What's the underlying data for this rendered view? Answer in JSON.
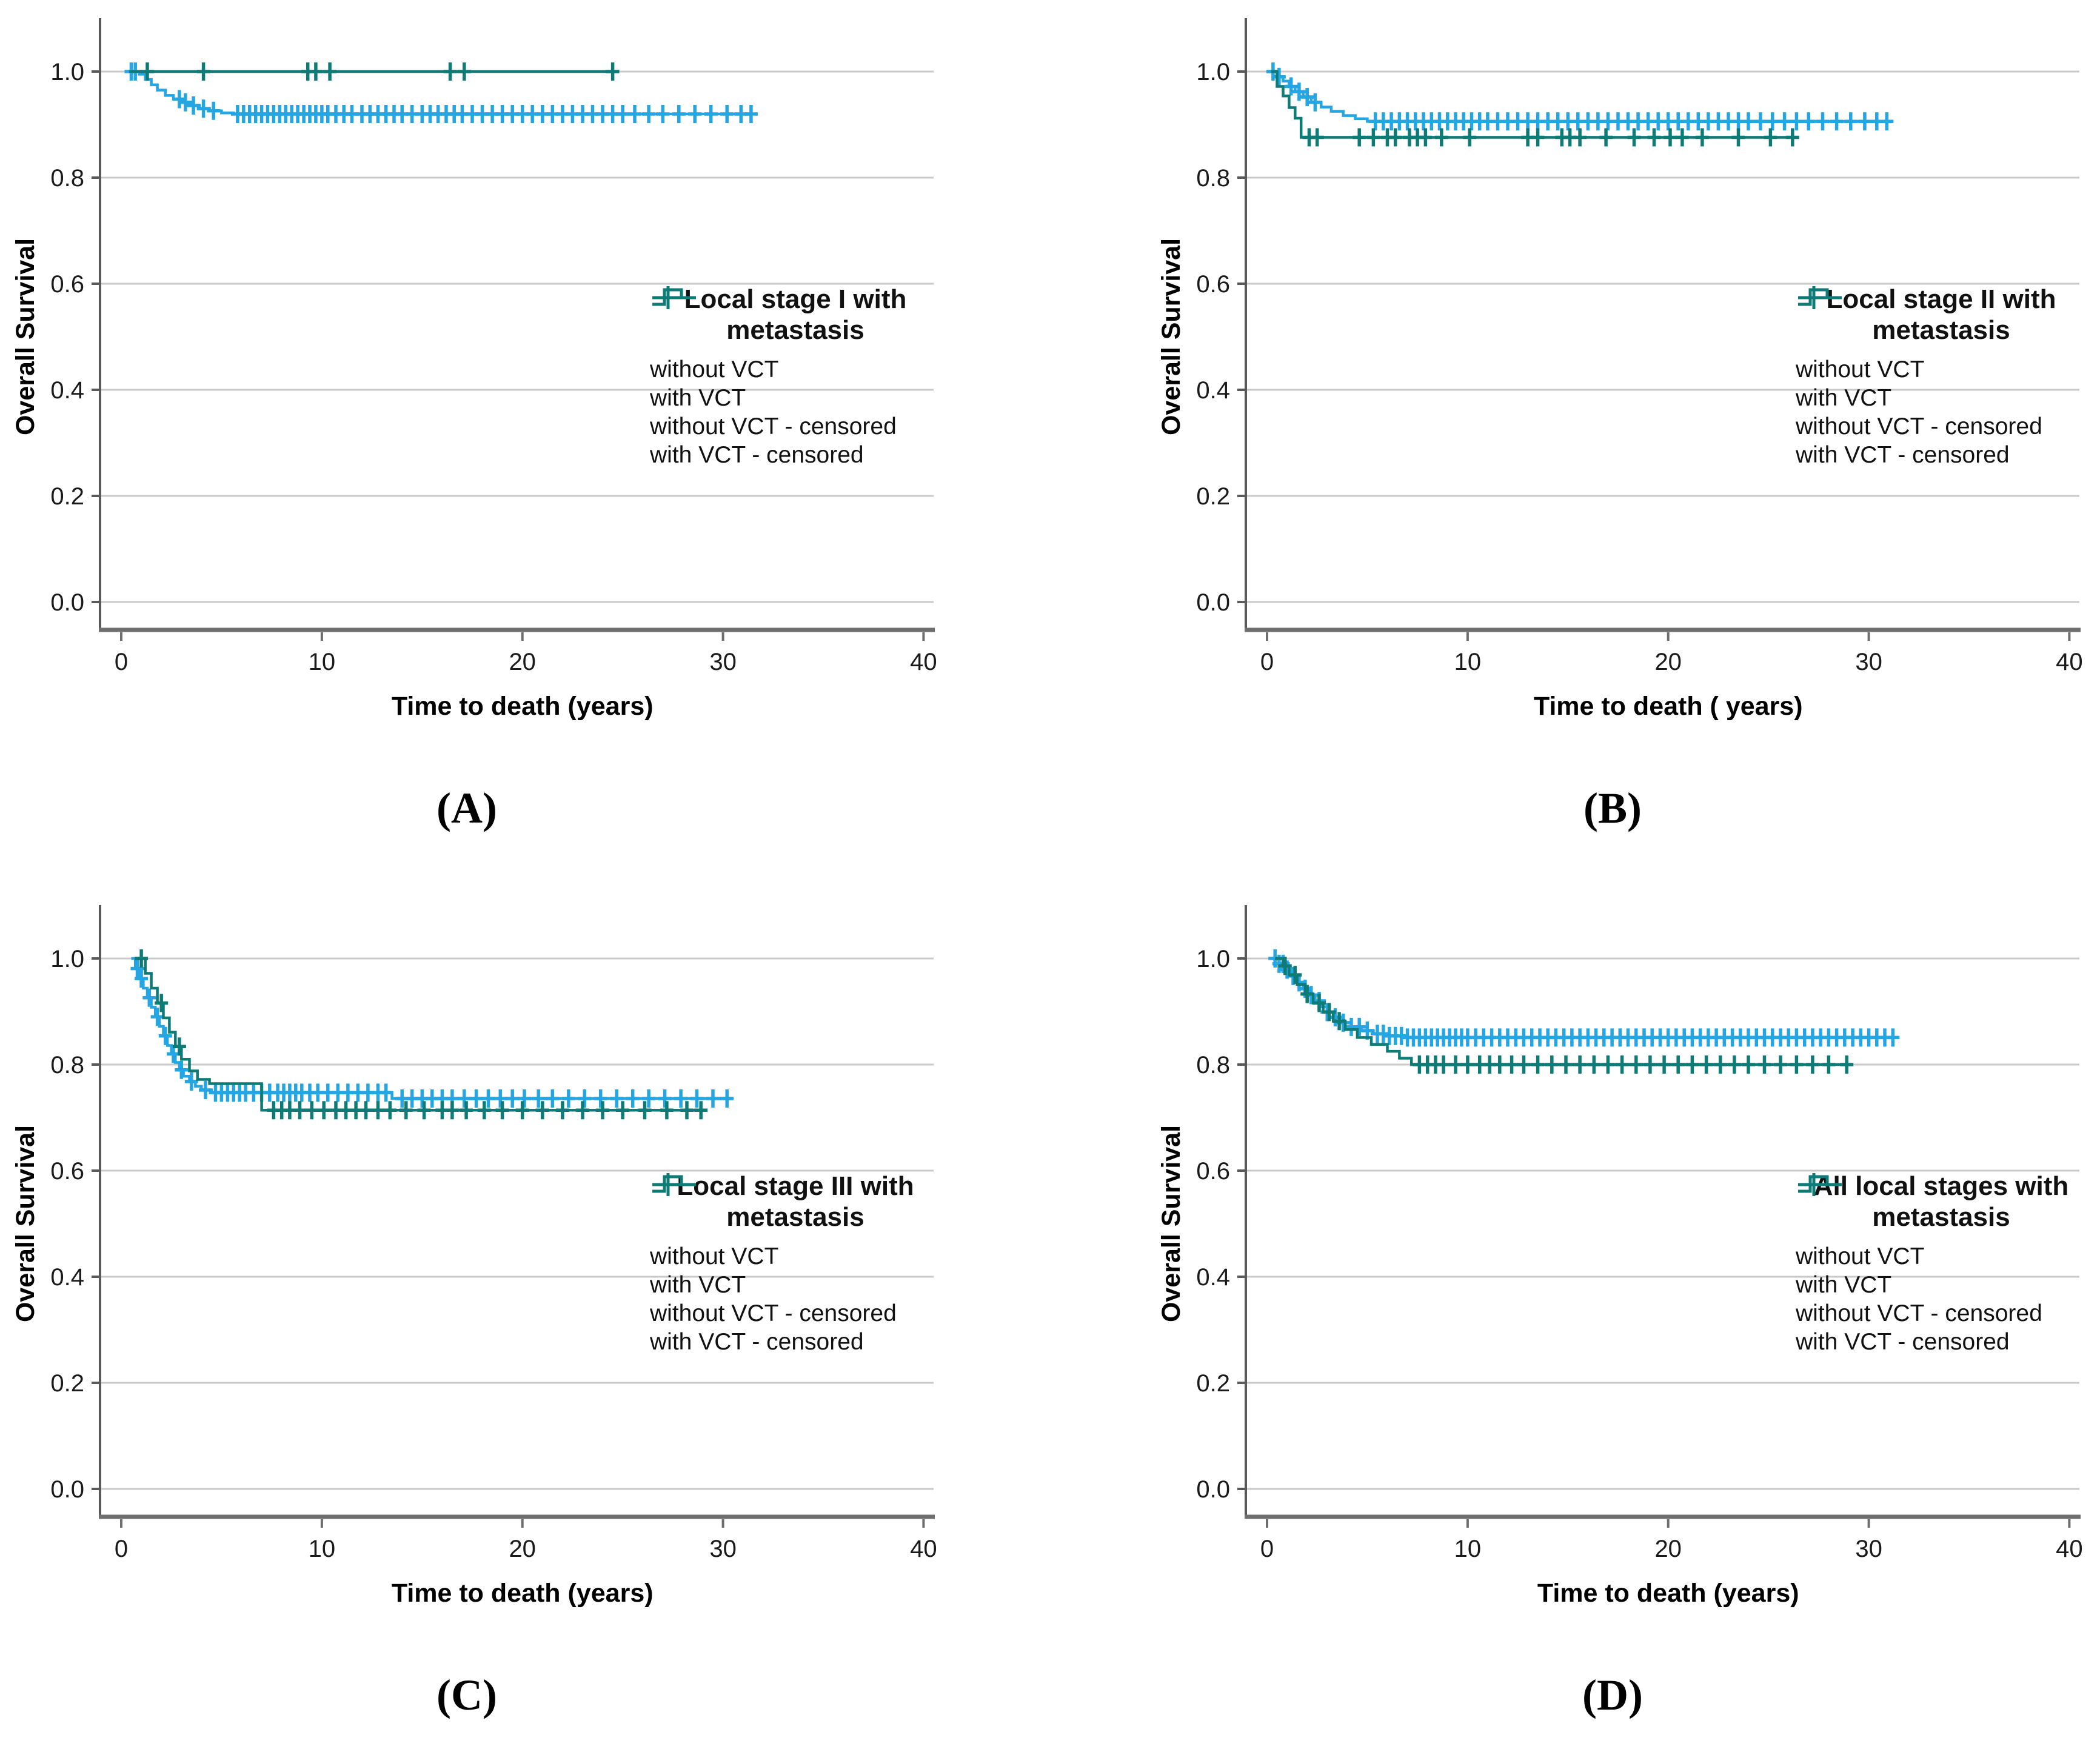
{
  "colors": {
    "blue": "#25A5E2",
    "teal": "#0F7B76",
    "grid": "#c9c9c9",
    "axis": "#595959",
    "axis_bottom": "#6e6e6e",
    "text": "#1a1a1a"
  },
  "chart_data": [
    {
      "type": "line",
      "panel": "A",
      "caption": "(A)",
      "legend": {
        "title_lines": [
          "Local stage I with",
          "metastasis"
        ],
        "items": [
          {
            "label": "without VCT"
          },
          {
            "label": "with VCT"
          },
          {
            "label": "without VCT - censored"
          },
          {
            "label": "with VCT - censored"
          }
        ]
      },
      "x": {
        "title": "Time to death (years)",
        "ticks": [
          0,
          10,
          20,
          30,
          40
        ],
        "lim": [
          -1,
          40.5
        ]
      },
      "y": {
        "title": "Overall Survival",
        "ticks": [
          "1.0",
          "0.8",
          "0.6",
          "0.4",
          "0.2",
          "0.0"
        ],
        "lim": [
          0,
          1.1
        ]
      },
      "series": [
        {
          "name": "without-vct",
          "color": "blue",
          "points": [
            [
              0.3,
              1.0
            ],
            [
              0.9,
              0.995
            ],
            [
              1.2,
              0.985
            ],
            [
              1.5,
              0.975
            ],
            [
              1.8,
              0.965
            ],
            [
              2.2,
              0.955
            ],
            [
              2.6,
              0.948
            ],
            [
              3.0,
              0.942
            ],
            [
              3.4,
              0.936
            ],
            [
              3.9,
              0.93
            ],
            [
              4.4,
              0.926
            ],
            [
              5.0,
              0.922
            ],
            [
              5.6,
              0.92
            ],
            [
              31.5,
              0.92
            ]
          ],
          "censored": [
            0.5,
            0.7,
            2.9,
            3.2,
            3.6,
            4.1,
            4.6,
            5.8,
            6.1,
            6.4,
            6.7,
            7.0,
            7.3,
            7.6,
            7.9,
            8.2,
            8.5,
            8.8,
            9.1,
            9.4,
            9.7,
            10.0,
            10.3,
            10.7,
            11.1,
            11.5,
            12.0,
            12.4,
            12.8,
            13.2,
            13.6,
            14.0,
            14.5,
            15.0,
            15.4,
            15.8,
            16.2,
            16.6,
            17.0,
            17.5,
            18.0,
            18.5,
            19.0,
            19.5,
            20.0,
            20.5,
            21.0,
            21.5,
            22.0,
            22.5,
            23.0,
            23.5,
            24.0,
            24.5,
            25.0,
            25.6,
            26.3,
            27.0,
            27.8,
            28.6,
            29.4,
            30.2,
            30.9,
            31.4
          ]
        },
        {
          "name": "with-vct",
          "color": "teal",
          "points": [
            [
              0.4,
              1.0
            ],
            [
              24.6,
              1.0
            ]
          ],
          "censored": [
            1.3,
            4.1,
            9.3,
            9.7,
            10.4,
            16.4,
            17.1,
            24.5
          ]
        }
      ]
    },
    {
      "type": "line",
      "panel": "B",
      "caption": "(B)",
      "legend": {
        "title_lines": [
          "Local stage II with",
          "metastasis"
        ],
        "items": [
          {
            "label": "without VCT"
          },
          {
            "label": "with VCT"
          },
          {
            "label": "without VCT - censored"
          },
          {
            "label": "with VCT - censored"
          }
        ]
      },
      "x": {
        "title": "Time to death ( years)",
        "ticks": [
          0,
          10,
          20,
          30,
          40
        ],
        "lim": [
          -1,
          40.5
        ]
      },
      "y": {
        "title": "Overall Survival",
        "ticks": [
          "1.0",
          "0.8",
          "0.6",
          "0.4",
          "0.2",
          "0.0"
        ],
        "lim": [
          0,
          1.1
        ]
      },
      "series": [
        {
          "name": "without-vct",
          "color": "blue",
          "points": [
            [
              0.2,
              1.0
            ],
            [
              0.5,
              0.99
            ],
            [
              0.8,
              0.982
            ],
            [
              1.1,
              0.972
            ],
            [
              1.4,
              0.962
            ],
            [
              1.8,
              0.952
            ],
            [
              2.2,
              0.942
            ],
            [
              2.7,
              0.933
            ],
            [
              3.2,
              0.925
            ],
            [
              3.8,
              0.917
            ],
            [
              4.4,
              0.911
            ],
            [
              5.0,
              0.906
            ],
            [
              31.0,
              0.906
            ]
          ],
          "censored": [
            0.3,
            0.6,
            1.2,
            1.6,
            2.0,
            2.4,
            5.4,
            5.8,
            6.2,
            6.6,
            7.0,
            7.4,
            7.8,
            8.2,
            8.6,
            9.0,
            9.4,
            9.8,
            10.2,
            10.6,
            11.0,
            11.5,
            12.0,
            12.5,
            13.0,
            13.5,
            14.0,
            14.5,
            15.0,
            15.5,
            16.0,
            16.5,
            17.0,
            17.5,
            18.0,
            18.5,
            19.0,
            19.5,
            20.0,
            20.5,
            21.0,
            21.5,
            22.0,
            22.5,
            23.0,
            23.5,
            24.0,
            24.6,
            25.2,
            25.8,
            26.4,
            27.0,
            27.7,
            28.4,
            29.1,
            29.8,
            30.4,
            30.9
          ]
        },
        {
          "name": "with-vct",
          "color": "teal",
          "points": [
            [
              0.2,
              1.0
            ],
            [
              0.5,
              0.972
            ],
            [
              0.8,
              0.954
            ],
            [
              1.1,
              0.932
            ],
            [
              1.4,
              0.912
            ],
            [
              1.7,
              0.876
            ],
            [
              26.3,
              0.876
            ]
          ],
          "censored": [
            2.1,
            2.5,
            4.6,
            5.3,
            6.0,
            6.4,
            7.1,
            7.5,
            7.9,
            8.7,
            10.1,
            13.0,
            13.5,
            14.7,
            15.1,
            15.6,
            16.9,
            18.3,
            19.3,
            20.1,
            20.7,
            21.7,
            23.5,
            25.1,
            26.2
          ]
        }
      ]
    },
    {
      "type": "line",
      "panel": "C",
      "caption": "(C)",
      "legend": {
        "title_lines": [
          "Local stage III with",
          "metastasis"
        ],
        "items": [
          {
            "label": "without VCT"
          },
          {
            "label": "with VCT"
          },
          {
            "label": "without VCT - censored"
          },
          {
            "label": "with VCT - censored"
          }
        ]
      },
      "x": {
        "title": "Time to death (years)",
        "ticks": [
          0,
          10,
          20,
          30,
          40
        ],
        "lim": [
          -1,
          40.5
        ]
      },
      "y": {
        "title": "Overall Survival",
        "ticks": [
          "1.0",
          "0.8",
          "0.6",
          "0.4",
          "0.2",
          "0.0"
        ],
        "lim": [
          0,
          1.1
        ]
      },
      "series": [
        {
          "name": "without-vct",
          "color": "blue",
          "points": [
            [
              0.5,
              1.0
            ],
            [
              0.7,
              0.981
            ],
            [
              0.9,
              0.962
            ],
            [
              1.1,
              0.944
            ],
            [
              1.3,
              0.926
            ],
            [
              1.5,
              0.908
            ],
            [
              1.7,
              0.89
            ],
            [
              1.9,
              0.872
            ],
            [
              2.1,
              0.854
            ],
            [
              2.3,
              0.836
            ],
            [
              2.5,
              0.82
            ],
            [
              2.7,
              0.804
            ],
            [
              2.9,
              0.79
            ],
            [
              3.1,
              0.778
            ],
            [
              3.4,
              0.768
            ],
            [
              3.7,
              0.759
            ],
            [
              4.0,
              0.752
            ],
            [
              4.5,
              0.747
            ],
            [
              13.5,
              0.736
            ],
            [
              30.5,
              0.736
            ]
          ],
          "censored": [
            0.8,
            1.0,
            1.4,
            1.8,
            2.2,
            2.6,
            3.0,
            3.5,
            4.2,
            4.7,
            5.0,
            5.3,
            5.6,
            5.9,
            6.2,
            6.6,
            7.0,
            7.4,
            7.8,
            8.1,
            8.4,
            8.7,
            9.0,
            9.4,
            9.8,
            10.3,
            10.8,
            11.3,
            11.8,
            12.3,
            12.8,
            13.2,
            14.0,
            14.5,
            15.0,
            15.5,
            16.0,
            16.5,
            17.1,
            17.7,
            18.3,
            18.9,
            19.5,
            20.1,
            20.8,
            21.5,
            22.3,
            23.1,
            23.9,
            24.7,
            25.5,
            26.3,
            27.1,
            27.9,
            28.7,
            29.5,
            30.2
          ]
        },
        {
          "name": "with-vct",
          "color": "teal",
          "points": [
            [
              0.9,
              1.0
            ],
            [
              1.2,
              0.972
            ],
            [
              1.5,
              0.944
            ],
            [
              1.8,
              0.916
            ],
            [
              2.1,
              0.888
            ],
            [
              2.4,
              0.861
            ],
            [
              2.7,
              0.834
            ],
            [
              3.0,
              0.81
            ],
            [
              3.4,
              0.788
            ],
            [
              3.8,
              0.772
            ],
            [
              4.4,
              0.764
            ],
            [
              7.0,
              0.714
            ],
            [
              29.0,
              0.714
            ]
          ],
          "censored": [
            1.0,
            2.0,
            2.9,
            7.6,
            8.0,
            8.4,
            8.9,
            9.5,
            10.1,
            10.7,
            11.2,
            11.7,
            12.2,
            12.8,
            13.4,
            14.2,
            15.1,
            16.0,
            16.5,
            17.2,
            18.1,
            19.0,
            20.0,
            21.0,
            22.0,
            23.0,
            24.0,
            25.0,
            26.1,
            27.2,
            28.2,
            28.9
          ]
        }
      ]
    },
    {
      "type": "line",
      "panel": "D",
      "caption": "(D)",
      "legend": {
        "title_lines": [
          "All local stages with",
          "metastasis"
        ],
        "items": [
          {
            "label": "without VCT"
          },
          {
            "label": "with VCT"
          },
          {
            "label": "without VCT  - censored"
          },
          {
            "label": "with VCT - censored"
          }
        ]
      },
      "x": {
        "title": "Time to death (years)",
        "ticks": [
          0,
          10,
          20,
          30,
          40
        ],
        "lim": [
          -1,
          40.5
        ]
      },
      "y": {
        "title": "Overall Survival",
        "ticks": [
          "1.0",
          "0.8",
          "0.6",
          "0.4",
          "0.2",
          "0.0"
        ],
        "lim": [
          0,
          1.1
        ]
      },
      "series": [
        {
          "name": "without-vct",
          "color": "blue",
          "points": [
            [
              0.3,
              1.0
            ],
            [
              0.6,
              0.99
            ],
            [
              0.9,
              0.979
            ],
            [
              1.2,
              0.967
            ],
            [
              1.5,
              0.955
            ],
            [
              1.8,
              0.943
            ],
            [
              2.1,
              0.931
            ],
            [
              2.4,
              0.92
            ],
            [
              2.7,
              0.909
            ],
            [
              3.0,
              0.899
            ],
            [
              3.4,
              0.889
            ],
            [
              3.8,
              0.879
            ],
            [
              4.2,
              0.871
            ],
            [
              4.7,
              0.864
            ],
            [
              5.3,
              0.858
            ],
            [
              6.0,
              0.854
            ],
            [
              7.0,
              0.851
            ],
            [
              31.5,
              0.851
            ]
          ],
          "censored": [
            0.4,
            0.6,
            0.8,
            1.0,
            1.3,
            1.6,
            1.9,
            2.2,
            2.6,
            3.0,
            3.4,
            3.8,
            4.2,
            4.6,
            5.0,
            5.5,
            5.8,
            6.1,
            6.4,
            6.7,
            7.0,
            7.3,
            7.6,
            7.9,
            8.2,
            8.5,
            8.8,
            9.1,
            9.4,
            9.7,
            10.0,
            10.4,
            10.8,
            11.2,
            11.6,
            12.0,
            12.4,
            12.8,
            13.2,
            13.6,
            14.0,
            14.4,
            14.8,
            15.2,
            15.6,
            16.0,
            16.4,
            16.8,
            17.2,
            17.6,
            18.0,
            18.4,
            18.8,
            19.2,
            19.6,
            20.0,
            20.4,
            20.8,
            21.2,
            21.6,
            22.0,
            22.4,
            22.8,
            23.2,
            23.6,
            24.0,
            24.4,
            24.8,
            25.2,
            25.6,
            26.0,
            26.4,
            26.8,
            27.2,
            27.6,
            28.0,
            28.4,
            28.8,
            29.2,
            29.6,
            30.0,
            30.4,
            30.8,
            31.2
          ]
        },
        {
          "name": "with-vct",
          "color": "teal",
          "points": [
            [
              0.4,
              1.0
            ],
            [
              0.8,
              0.986
            ],
            [
              1.1,
              0.969
            ],
            [
              1.5,
              0.951
            ],
            [
              1.9,
              0.933
            ],
            [
              2.3,
              0.916
            ],
            [
              2.8,
              0.899
            ],
            [
              3.3,
              0.882
            ],
            [
              3.9,
              0.866
            ],
            [
              4.5,
              0.851
            ],
            [
              5.2,
              0.838
            ],
            [
              6.0,
              0.825
            ],
            [
              6.6,
              0.812
            ],
            [
              7.2,
              0.8
            ],
            [
              29.0,
              0.8
            ]
          ],
          "censored": [
            0.9,
            1.4,
            2.0,
            2.6,
            3.1,
            3.6,
            7.6,
            8.0,
            8.4,
            8.8,
            9.4,
            10.0,
            10.6,
            11.1,
            11.6,
            12.2,
            12.8,
            13.5,
            14.2,
            14.9,
            15.6,
            16.3,
            17.0,
            17.7,
            18.4,
            19.1,
            19.8,
            20.5,
            21.2,
            21.9,
            22.6,
            23.3,
            24.0,
            24.8,
            25.6,
            26.4,
            27.2,
            28.0,
            28.9
          ]
        }
      ]
    }
  ]
}
